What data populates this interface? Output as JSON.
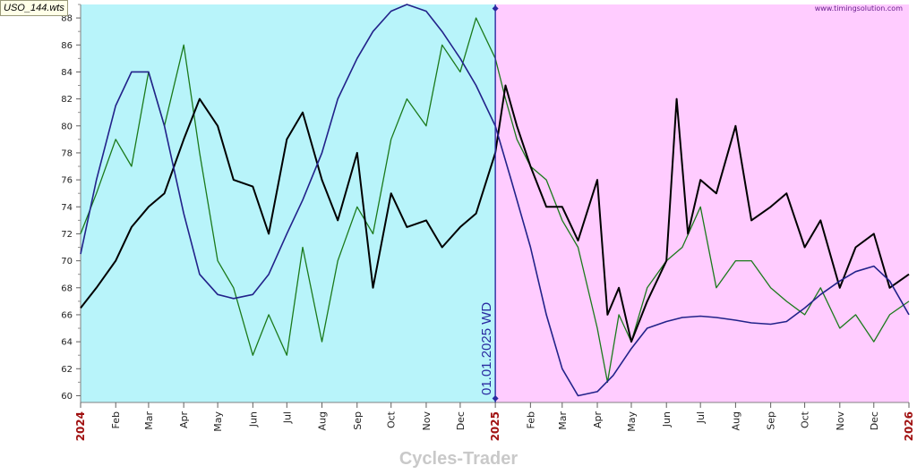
{
  "file_label": "USO_144.wts",
  "watermark": "www.timingsolution.com",
  "footer_title": "Cycles-Trader",
  "colors": {
    "history_bg": "#b8f4fa",
    "forecast_bg": "#ffccff",
    "price": "#000000",
    "model": "#1b7a1b",
    "cycle": "#22228a",
    "divider": "#2a2aa0",
    "year_label": "#a01010"
  },
  "chart_data": {
    "type": "line",
    "title": "",
    "xlabel": "",
    "ylabel": "",
    "x_range": [
      "2024-01-01",
      "2026-01-01"
    ],
    "ylim": [
      59.5,
      89
    ],
    "y_ticks": [
      60,
      62,
      64,
      66,
      68,
      70,
      72,
      74,
      76,
      78,
      80,
      82,
      84,
      86,
      88
    ],
    "x_ticks": [
      {
        "date": "2024-01-01",
        "label": "2024",
        "year": true
      },
      {
        "date": "2024-02-01",
        "label": "Feb"
      },
      {
        "date": "2024-03-01",
        "label": "Mar"
      },
      {
        "date": "2024-04-01",
        "label": "Apr"
      },
      {
        "date": "2024-05-01",
        "label": "May"
      },
      {
        "date": "2024-06-01",
        "label": "Jun"
      },
      {
        "date": "2024-07-01",
        "label": "Jul"
      },
      {
        "date": "2024-08-01",
        "label": "Aug"
      },
      {
        "date": "2024-09-01",
        "label": "Sep"
      },
      {
        "date": "2024-10-01",
        "label": "Oct"
      },
      {
        "date": "2024-11-01",
        "label": "Nov"
      },
      {
        "date": "2024-12-01",
        "label": "Dec"
      },
      {
        "date": "2025-01-01",
        "label": "2025",
        "year": true
      },
      {
        "date": "2025-02-01",
        "label": "Feb"
      },
      {
        "date": "2025-03-01",
        "label": "Mar"
      },
      {
        "date": "2025-04-01",
        "label": "Apr"
      },
      {
        "date": "2025-05-01",
        "label": "May"
      },
      {
        "date": "2025-06-01",
        "label": "Jun"
      },
      {
        "date": "2025-07-01",
        "label": "Jul"
      },
      {
        "date": "2025-08-01",
        "label": "Aug"
      },
      {
        "date": "2025-09-01",
        "label": "Sep"
      },
      {
        "date": "2025-10-01",
        "label": "Oct"
      },
      {
        "date": "2025-11-01",
        "label": "Nov"
      },
      {
        "date": "2025-12-01",
        "label": "Dec"
      },
      {
        "date": "2026-01-01",
        "label": "2026",
        "year": true
      }
    ],
    "divider": {
      "date": "2025-01-01",
      "label": "01.01.2025 WD"
    },
    "forecast_start": "2025-01-01",
    "grid": false,
    "series": [
      {
        "key": "price",
        "x": [
          "2024-01-01",
          "2024-01-15",
          "2024-02-01",
          "2024-02-15",
          "2024-03-01",
          "2024-03-15",
          "2024-04-01",
          "2024-04-15",
          "2024-05-01",
          "2024-05-15",
          "2024-06-01",
          "2024-06-15",
          "2024-07-01",
          "2024-07-15",
          "2024-08-01",
          "2024-08-15",
          "2024-09-01",
          "2024-09-15",
          "2024-10-01",
          "2024-10-15",
          "2024-11-01",
          "2024-11-15",
          "2024-12-01",
          "2024-12-15",
          "2025-01-01",
          "2025-01-10",
          "2025-01-20",
          "2025-02-01",
          "2025-02-15",
          "2025-03-01",
          "2025-03-15",
          "2025-04-01",
          "2025-04-10",
          "2025-04-20",
          "2025-05-01",
          "2025-05-15",
          "2025-06-01",
          "2025-06-10",
          "2025-06-20",
          "2025-07-01",
          "2025-07-15",
          "2025-08-01",
          "2025-08-15",
          "2025-09-01",
          "2025-09-15",
          "2025-10-01",
          "2025-10-15",
          "2025-11-01",
          "2025-11-15",
          "2025-12-01",
          "2025-12-15",
          "2026-01-01"
        ],
        "y": [
          66.5,
          68,
          70,
          72.5,
          74,
          75,
          79,
          82,
          80,
          76,
          75.5,
          72,
          79,
          81,
          76,
          73,
          78,
          68,
          75,
          72.5,
          73,
          71,
          72.5,
          73.5,
          78,
          83,
          80,
          77,
          74,
          74,
          71.5,
          76,
          66,
          68,
          64,
          67,
          70,
          82,
          72,
          76,
          75,
          80,
          73,
          74,
          75,
          71,
          73,
          68,
          71,
          72,
          68,
          69
        ]
      },
      {
        "key": "model",
        "x": [
          "2024-01-01",
          "2024-01-15",
          "2024-02-01",
          "2024-02-15",
          "2024-03-01",
          "2024-03-15",
          "2024-04-01",
          "2024-04-15",
          "2024-05-01",
          "2024-05-15",
          "2024-06-01",
          "2024-06-15",
          "2024-07-01",
          "2024-07-15",
          "2024-08-01",
          "2024-08-15",
          "2024-09-01",
          "2024-09-15",
          "2024-10-01",
          "2024-10-15",
          "2024-11-01",
          "2024-11-15",
          "2024-12-01",
          "2024-12-15",
          "2025-01-01",
          "2025-01-10",
          "2025-01-20",
          "2025-02-01",
          "2025-02-15",
          "2025-03-01",
          "2025-03-15",
          "2025-04-01",
          "2025-04-10",
          "2025-04-20",
          "2025-05-01",
          "2025-05-15",
          "2025-06-01",
          "2025-06-15",
          "2025-07-01",
          "2025-07-15",
          "2025-08-01",
          "2025-08-15",
          "2025-09-01",
          "2025-09-15",
          "2025-10-01",
          "2025-10-15",
          "2025-11-01",
          "2025-11-15",
          "2025-12-01",
          "2025-12-15",
          "2026-01-01"
        ],
        "y": [
          72,
          75,
          79,
          77,
          84,
          80,
          86,
          78,
          70,
          68,
          63,
          66,
          63,
          71,
          64,
          70,
          74,
          72,
          79,
          82,
          80,
          86,
          84,
          88,
          85,
          82,
          79,
          77,
          76,
          73,
          71,
          65,
          61,
          66,
          64,
          68,
          70,
          71,
          74,
          68,
          70,
          70,
          68,
          67,
          66,
          68,
          65,
          66,
          64,
          66,
          67
        ]
      },
      {
        "key": "cycle",
        "x": [
          "2024-01-01",
          "2024-01-15",
          "2024-02-01",
          "2024-02-15",
          "2024-03-01",
          "2024-03-15",
          "2024-04-01",
          "2024-04-15",
          "2024-05-01",
          "2024-05-15",
          "2024-06-01",
          "2024-06-15",
          "2024-07-01",
          "2024-07-15",
          "2024-08-01",
          "2024-08-15",
          "2024-09-01",
          "2024-09-15",
          "2024-10-01",
          "2024-10-15",
          "2024-11-01",
          "2024-11-15",
          "2024-12-01",
          "2024-12-15",
          "2025-01-01",
          "2025-01-15",
          "2025-02-01",
          "2025-02-15",
          "2025-03-01",
          "2025-03-15",
          "2025-04-01",
          "2025-04-15",
          "2025-05-01",
          "2025-05-15",
          "2025-06-01",
          "2025-06-15",
          "2025-07-01",
          "2025-07-15",
          "2025-08-01",
          "2025-08-15",
          "2025-09-01",
          "2025-09-15",
          "2025-10-01",
          "2025-10-15",
          "2025-11-01",
          "2025-11-15",
          "2025-12-01",
          "2025-12-15",
          "2026-01-01"
        ],
        "y": [
          70.5,
          76,
          81.5,
          84,
          84,
          80,
          73.5,
          69,
          67.5,
          67.2,
          67.5,
          69,
          72,
          74.5,
          78,
          82,
          85,
          87,
          88.5,
          89,
          88.5,
          87,
          85,
          83,
          80,
          76,
          71,
          66,
          62,
          60,
          60.3,
          61.5,
          63.5,
          65,
          65.5,
          65.8,
          65.9,
          65.8,
          65.6,
          65.4,
          65.3,
          65.5,
          66.5,
          67.5,
          68.5,
          69.2,
          69.6,
          68.5,
          66
        ]
      }
    ]
  }
}
